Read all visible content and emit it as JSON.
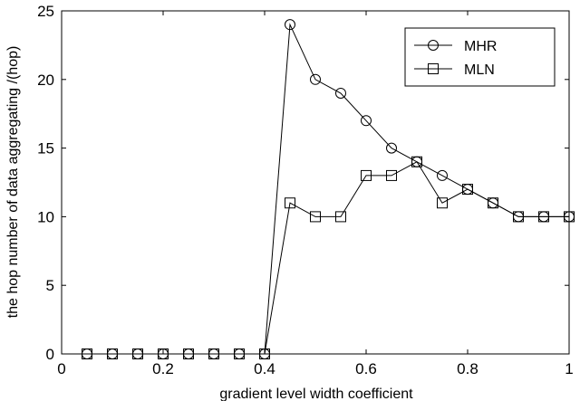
{
  "chart_data": {
    "type": "line",
    "title": "",
    "xlabel": "gradient level width coefficient",
    "ylabel": "the hop number of data aggregating  /(hop)",
    "xlim": [
      0,
      1
    ],
    "ylim": [
      0,
      25
    ],
    "x_ticks": [
      "0",
      "0.2",
      "0.4",
      "0.6",
      "0.8",
      "1"
    ],
    "y_ticks": [
      "0",
      "5",
      "10",
      "15",
      "20",
      "25"
    ],
    "grid": false,
    "legend_position": "top-right",
    "x": [
      0.05,
      0.1,
      0.15,
      0.2,
      0.25,
      0.3,
      0.35,
      0.4,
      0.45,
      0.5,
      0.55,
      0.6,
      0.65,
      0.7,
      0.75,
      0.8,
      0.85,
      0.9,
      0.95,
      1.0
    ],
    "series": [
      {
        "name": "MHR",
        "marker": "circle",
        "values": [
          0,
          0,
          0,
          0,
          0,
          0,
          0,
          0,
          24,
          20,
          19,
          17,
          15,
          14,
          13,
          12,
          11,
          10,
          10,
          10
        ]
      },
      {
        "name": "MLN",
        "marker": "square",
        "values": [
          0,
          0,
          0,
          0,
          0,
          0,
          0,
          0,
          11,
          10,
          10,
          13,
          13,
          14,
          11,
          12,
          11,
          10,
          10,
          10
        ]
      }
    ],
    "colors": {
      "line": "#000000",
      "background": "#ffffff"
    }
  }
}
